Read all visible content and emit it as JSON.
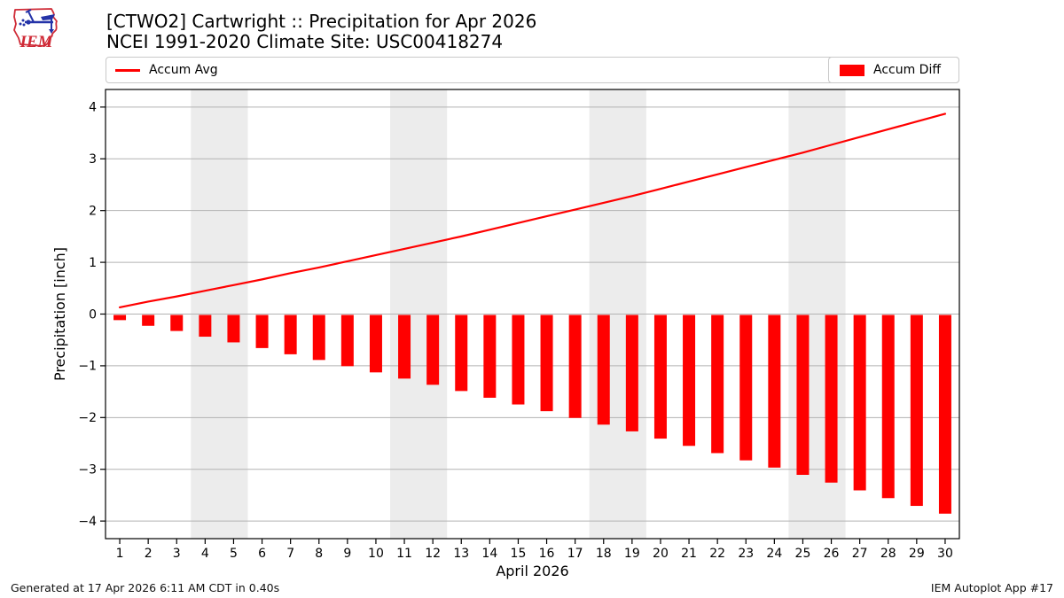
{
  "header": {
    "title": "[CTWO2] Cartwright :: Precipitation for Apr 2026",
    "subtitle": "NCEI 1991-2020 Climate Site: USC00418274"
  },
  "logo": {
    "text": "IEM"
  },
  "legend": {
    "avg_label": "Accum Avg",
    "diff_label": "Accum Diff"
  },
  "footer": {
    "left": "Generated at 17 Apr 2026 6:11 AM CDT in 0.40s",
    "right": "IEM Autoplot App #17"
  },
  "colors": {
    "accent": "#ff0000",
    "grid": "#b2b2b2",
    "weekend_band": "#ececec",
    "frame": "#000000",
    "legend_border": "#c9c9c9",
    "logo_red": "#cf2a36",
    "logo_blue": "#2433a8"
  },
  "chart_data": {
    "type": "combo",
    "title": "[CTWO2] Cartwright :: Precipitation for Apr 2026",
    "subtitle": "NCEI 1991-2020 Climate Site: USC00418274",
    "xlabel": "April 2026",
    "ylabel": "Precipitation [inch]",
    "x": [
      1,
      2,
      3,
      4,
      5,
      6,
      7,
      8,
      9,
      10,
      11,
      12,
      13,
      14,
      15,
      16,
      17,
      18,
      19,
      20,
      21,
      22,
      23,
      24,
      25,
      26,
      27,
      28,
      29,
      30
    ],
    "series": [
      {
        "name": "Accum Avg",
        "type": "line",
        "color": "#ff0000",
        "values": [
          0.13,
          0.24,
          0.34,
          0.45,
          0.56,
          0.67,
          0.79,
          0.9,
          1.02,
          1.14,
          1.26,
          1.38,
          1.5,
          1.63,
          1.76,
          1.89,
          2.02,
          2.15,
          2.28,
          2.42,
          2.56,
          2.7,
          2.84,
          2.98,
          3.12,
          3.27,
          3.42,
          3.57,
          3.72,
          3.87
        ]
      },
      {
        "name": "Accum Diff",
        "type": "bar",
        "color": "#ff0000",
        "values": [
          -0.1,
          -0.21,
          -0.31,
          -0.42,
          -0.53,
          -0.64,
          -0.76,
          -0.87,
          -0.99,
          -1.11,
          -1.23,
          -1.35,
          -1.47,
          -1.6,
          -1.73,
          -1.86,
          -1.99,
          -2.12,
          -2.25,
          -2.39,
          -2.53,
          -2.67,
          -2.81,
          -2.95,
          -3.09,
          -3.24,
          -3.39,
          -3.54,
          -3.69,
          -3.84
        ]
      }
    ],
    "ylim": [
      -4.34,
      4.34
    ],
    "yticks": [
      -4,
      -3,
      -2,
      -1,
      0,
      1,
      2,
      3,
      4
    ],
    "weekend_bands": [
      [
        4,
        5
      ],
      [
        11,
        12
      ],
      [
        18,
        19
      ],
      [
        25,
        26
      ]
    ],
    "grid": true,
    "legend_position": "top"
  }
}
